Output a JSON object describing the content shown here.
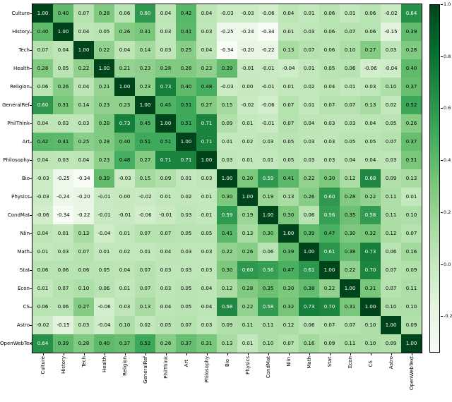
{
  "figure": {
    "background": "#ffffff",
    "frame_color": "#000000"
  },
  "chart_data": {
    "type": "heatmap",
    "title": "",
    "xlabel": "",
    "ylabel": "",
    "categories": [
      "Culture",
      "History",
      "Tech",
      "Health",
      "Religion",
      "GeneralRef",
      "PhilThink",
      "Art",
      "Philosophy",
      "Bio",
      "Physics",
      "CondMat",
      "Nlin",
      "Math",
      "Stat",
      "Econ",
      "CS",
      "Astro",
      "OpenWebText"
    ],
    "matrix": [
      [
        1.0,
        0.4,
        0.07,
        0.28,
        0.06,
        0.6,
        0.04,
        0.42,
        0.04,
        -0.03,
        -0.03,
        -0.06,
        0.04,
        0.01,
        0.06,
        0.01,
        0.06,
        -0.02,
        0.64
      ],
      [
        0.4,
        1.0,
        0.04,
        0.05,
        0.26,
        0.31,
        0.03,
        0.41,
        0.03,
        -0.25,
        -0.24,
        -0.34,
        0.01,
        0.03,
        0.06,
        0.07,
        0.06,
        -0.15,
        0.39
      ],
      [
        0.07,
        0.04,
        1.0,
        0.22,
        0.04,
        0.14,
        0.03,
        0.25,
        0.04,
        -0.34,
        -0.2,
        -0.22,
        0.13,
        0.07,
        0.06,
        0.1,
        0.27,
        0.03,
        0.28
      ],
      [
        0.28,
        0.05,
        0.22,
        1.0,
        0.21,
        0.23,
        0.28,
        0.28,
        0.23,
        0.39,
        -0.01,
        -0.01,
        -0.04,
        0.01,
        0.05,
        0.06,
        -0.06,
        -0.04,
        0.4
      ],
      [
        0.06,
        0.26,
        0.04,
        0.21,
        1.0,
        0.23,
        0.73,
        0.4,
        0.48,
        -0.03,
        0.0,
        -0.01,
        0.01,
        0.02,
        0.04,
        0.01,
        0.03,
        0.1,
        0.37
      ],
      [
        0.6,
        0.31,
        0.14,
        0.23,
        0.23,
        1.0,
        0.45,
        0.51,
        0.27,
        0.15,
        -0.02,
        -0.06,
        0.07,
        0.01,
        0.07,
        0.07,
        0.13,
        0.02,
        0.52
      ],
      [
        0.04,
        0.03,
        0.03,
        0.28,
        0.73,
        0.45,
        1.0,
        0.51,
        0.71,
        0.09,
        0.01,
        -0.01,
        0.07,
        0.04,
        0.03,
        0.03,
        0.04,
        0.05,
        0.26
      ],
      [
        0.42,
        0.41,
        0.25,
        0.28,
        0.4,
        0.51,
        0.51,
        1.0,
        0.71,
        0.01,
        0.02,
        0.03,
        0.05,
        0.03,
        0.03,
        0.05,
        0.05,
        0.07,
        0.37
      ],
      [
        0.04,
        0.03,
        0.04,
        0.23,
        0.48,
        0.27,
        0.71,
        0.71,
        1.0,
        0.03,
        0.01,
        0.01,
        0.05,
        0.03,
        0.03,
        0.04,
        0.04,
        0.03,
        0.31
      ],
      [
        -0.03,
        -0.25,
        -0.34,
        0.39,
        -0.03,
        0.15,
        0.09,
        0.01,
        0.03,
        1.0,
        0.3,
        0.59,
        0.41,
        0.22,
        0.3,
        0.12,
        0.68,
        0.09,
        0.13
      ],
      [
        -0.03,
        -0.24,
        -0.2,
        -0.01,
        0.0,
        -0.02,
        0.01,
        0.02,
        0.01,
        0.3,
        1.0,
        0.19,
        0.13,
        0.26,
        0.6,
        0.28,
        0.22,
        0.11,
        0.01
      ],
      [
        -0.06,
        -0.34,
        -0.22,
        -0.01,
        -0.01,
        -0.06,
        -0.01,
        0.03,
        0.01,
        0.59,
        0.19,
        1.0,
        0.3,
        0.06,
        0.56,
        0.35,
        0.58,
        0.11,
        0.1
      ],
      [
        0.04,
        0.01,
        0.13,
        -0.04,
        0.01,
        0.07,
        0.07,
        0.05,
        0.05,
        0.41,
        0.13,
        0.3,
        1.0,
        0.39,
        0.47,
        0.3,
        0.32,
        0.12,
        0.07
      ],
      [
        0.01,
        0.03,
        0.07,
        0.01,
        0.02,
        0.01,
        0.04,
        0.03,
        0.03,
        0.22,
        0.26,
        0.06,
        0.39,
        1.0,
        0.61,
        0.38,
        0.73,
        0.06,
        0.16
      ],
      [
        0.06,
        0.06,
        0.06,
        0.05,
        0.04,
        0.07,
        0.03,
        0.03,
        0.03,
        0.3,
        0.6,
        0.56,
        0.47,
        0.61,
        1.0,
        0.22,
        0.7,
        0.07,
        0.09
      ],
      [
        0.01,
        0.07,
        0.1,
        0.06,
        0.01,
        0.07,
        0.03,
        0.05,
        0.04,
        0.12,
        0.28,
        0.35,
        0.3,
        0.38,
        0.22,
        1.0,
        0.31,
        0.07,
        0.11
      ],
      [
        0.06,
        0.06,
        0.27,
        -0.06,
        0.03,
        0.13,
        0.04,
        0.05,
        0.04,
        0.68,
        0.22,
        0.58,
        0.32,
        0.73,
        0.7,
        0.31,
        1.0,
        0.1,
        0.1
      ],
      [
        -0.02,
        -0.15,
        0.03,
        -0.04,
        0.1,
        0.02,
        0.05,
        0.07,
        0.03,
        0.09,
        0.11,
        0.11,
        0.12,
        0.06,
        0.07,
        0.07,
        0.1,
        1.0,
        0.09
      ],
      [
        0.64,
        0.39,
        0.28,
        0.4,
        0.37,
        0.52,
        0.26,
        0.37,
        0.31,
        0.13,
        0.01,
        0.1,
        0.07,
        0.16,
        0.09,
        0.11,
        0.1,
        0.09,
        1.0
      ]
    ],
    "annotations": true,
    "value_decimals": 2,
    "vmin": -0.34,
    "vmax": 1.0,
    "colormap": "Greens",
    "colormap_stops": [
      [
        0.0,
        247,
        252,
        245
      ],
      [
        0.125,
        229,
        245,
        224
      ],
      [
        0.25,
        199,
        233,
        192
      ],
      [
        0.375,
        161,
        217,
        155
      ],
      [
        0.5,
        116,
        196,
        118
      ],
      [
        0.625,
        65,
        171,
        93
      ],
      [
        0.75,
        35,
        139,
        69
      ],
      [
        0.875,
        0,
        109,
        44
      ],
      [
        1.0,
        0,
        68,
        27
      ]
    ],
    "annotation_text_dark": "#000000",
    "annotation_text_light": "#ffffff",
    "grid": false,
    "x_tick_rotation": 90,
    "legend_position": "none",
    "colorbar": {
      "position": "right",
      "tick_labels": [
        "1.0",
        "0.8",
        "0.6",
        "0.4",
        "0.2",
        "0.0",
        "-0.2"
      ],
      "tick_values": [
        1.0,
        0.8,
        0.6,
        0.4,
        0.2,
        0.0,
        -0.2
      ]
    }
  }
}
